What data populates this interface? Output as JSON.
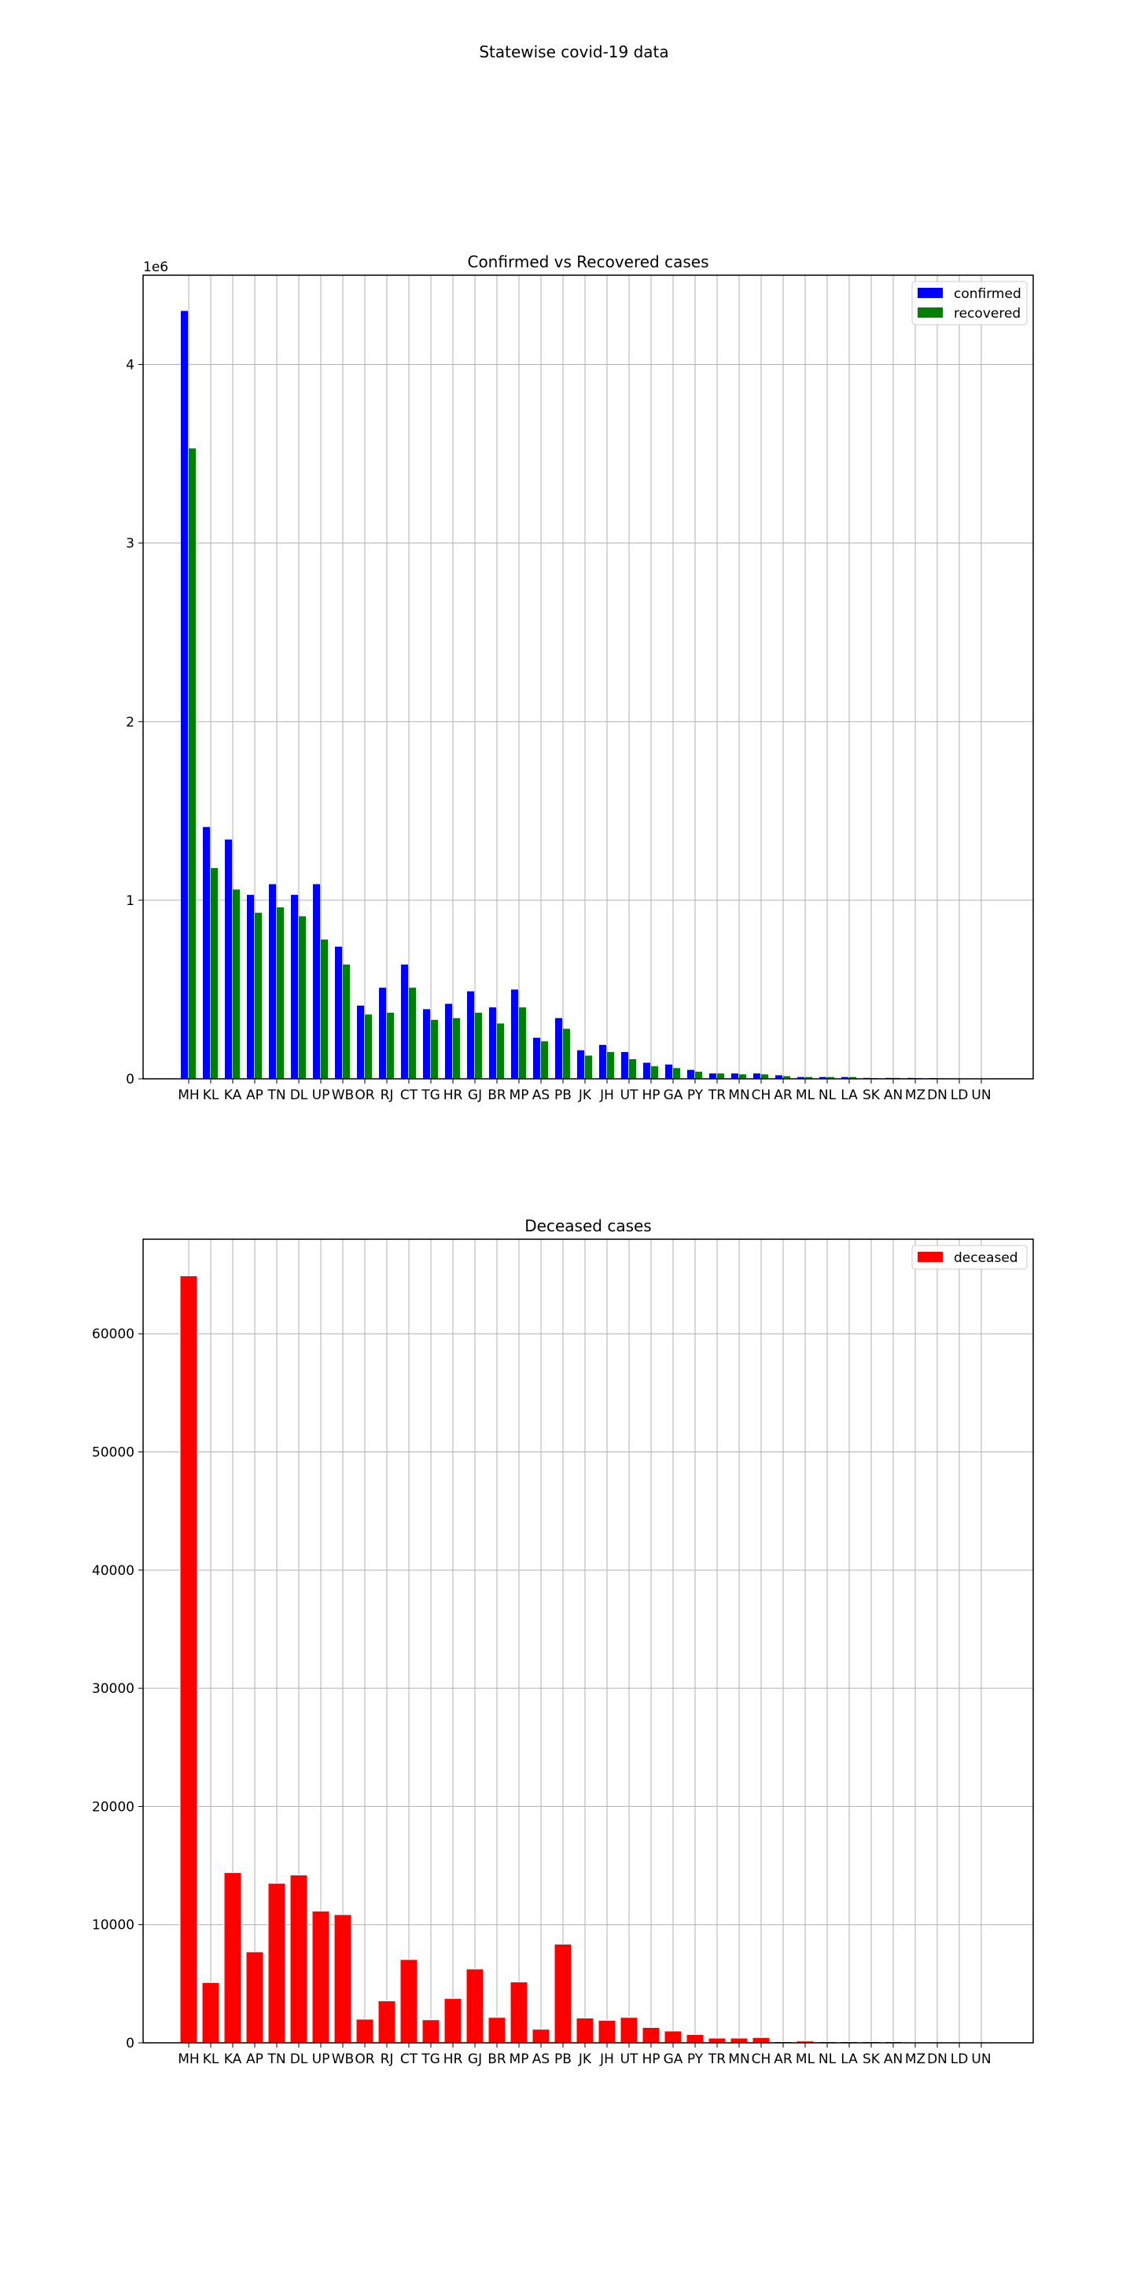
{
  "figure": {
    "suptitle": "Statewise covid-19 data"
  },
  "chart_data": [
    {
      "type": "bar",
      "title": "Confirmed vs Recovered cases",
      "xlabel": "",
      "ylabel": "",
      "offset_label": "1e6",
      "ylim": [
        0,
        4.5
      ],
      "yticks": [
        0,
        1,
        2,
        3,
        4
      ],
      "grid": true,
      "legend": "top-right",
      "categories": [
        "MH",
        "KL",
        "KA",
        "AP",
        "TN",
        "DL",
        "UP",
        "WB",
        "OR",
        "RJ",
        "CT",
        "TG",
        "HR",
        "GJ",
        "BR",
        "MP",
        "AS",
        "PB",
        "JK",
        "JH",
        "UT",
        "HP",
        "GA",
        "PY",
        "TR",
        "MN",
        "CH",
        "AR",
        "ML",
        "NL",
        "LA",
        "SK",
        "AN",
        "MZ",
        "DN",
        "LD",
        "UN"
      ],
      "series": [
        {
          "name": "confirmed",
          "color": "#0000ff",
          "values": [
            4.3,
            1.41,
            1.34,
            1.03,
            1.09,
            1.03,
            1.09,
            0.74,
            0.41,
            0.51,
            0.64,
            0.39,
            0.42,
            0.49,
            0.4,
            0.5,
            0.23,
            0.34,
            0.16,
            0.19,
            0.15,
            0.09,
            0.08,
            0.05,
            0.03,
            0.03,
            0.03,
            0.02,
            0.01,
            0.01,
            0.01,
            0.005,
            0.005,
            0.005,
            0.004,
            0.001,
            0.0
          ]
        },
        {
          "name": "recovered",
          "color": "#008000",
          "values": [
            3.53,
            1.18,
            1.06,
            0.93,
            0.96,
            0.91,
            0.78,
            0.64,
            0.36,
            0.37,
            0.51,
            0.33,
            0.34,
            0.37,
            0.31,
            0.4,
            0.21,
            0.28,
            0.13,
            0.15,
            0.11,
            0.07,
            0.06,
            0.04,
            0.03,
            0.025,
            0.025,
            0.015,
            0.01,
            0.01,
            0.01,
            0.004,
            0.005,
            0.004,
            0.003,
            0.001,
            0.0
          ]
        }
      ]
    },
    {
      "type": "bar",
      "title": "Deceased cases",
      "xlabel": "",
      "ylabel": "",
      "ylim": [
        0,
        68000
      ],
      "yticks": [
        0,
        10000,
        20000,
        30000,
        40000,
        50000,
        60000
      ],
      "grid": true,
      "legend": "top-right",
      "categories": [
        "MH",
        "KL",
        "KA",
        "AP",
        "TN",
        "DL",
        "UP",
        "WB",
        "OR",
        "RJ",
        "CT",
        "TG",
        "HR",
        "GJ",
        "BR",
        "MP",
        "AS",
        "PB",
        "JK",
        "JH",
        "UT",
        "HP",
        "GA",
        "PY",
        "TR",
        "MN",
        "CH",
        "AR",
        "ML",
        "NL",
        "LA",
        "SK",
        "AN",
        "MZ",
        "DN",
        "LD",
        "UN"
      ],
      "series": [
        {
          "name": "deceased",
          "color": "#ff0000",
          "values": [
            64900,
            5100,
            14400,
            7700,
            13500,
            14200,
            11150,
            10850,
            2000,
            3550,
            7050,
            1950,
            3750,
            6250,
            2150,
            5150,
            1150,
            8350,
            2100,
            1900,
            2150,
            1300,
            1000,
            700,
            400,
            400,
            450,
            100,
            150,
            100,
            100,
            100,
            100,
            50,
            0,
            0,
            0
          ]
        }
      ]
    }
  ]
}
